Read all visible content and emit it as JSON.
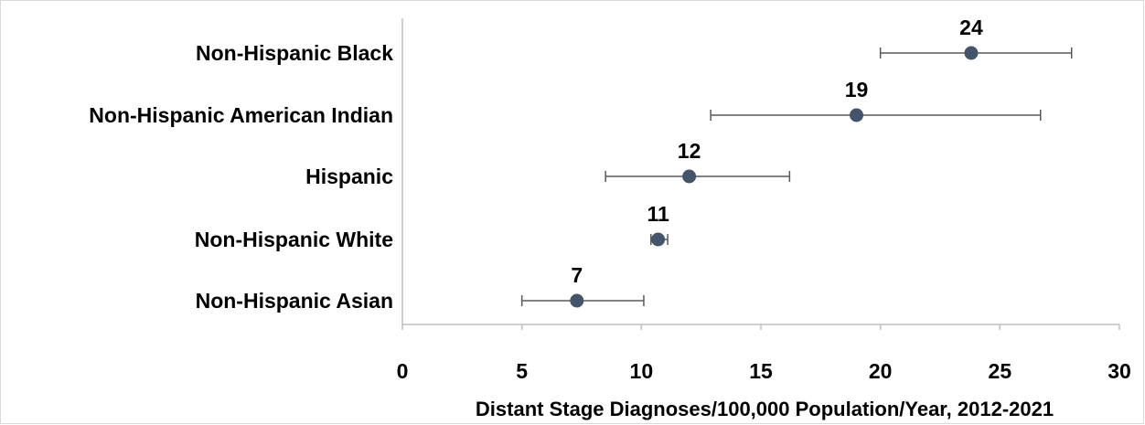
{
  "chart_data": {
    "type": "scatter",
    "orientation": "horizontal",
    "title": "",
    "xlabel": "Distant Stage Diagnoses/100,000 Population/Year, 2012-2021",
    "ylabel": "",
    "xlim": [
      0,
      30
    ],
    "x_ticks": [
      0,
      5,
      10,
      15,
      20,
      25,
      30
    ],
    "grid": false,
    "legend": "none",
    "marker_color": "#44546a",
    "error_bar_color": "#595959",
    "categories": [
      "Non-Hispanic Black",
      "Non-Hispanic American Indian",
      "Hispanic",
      "Non-Hispanic White",
      "Non-Hispanic Asian"
    ],
    "values": [
      23.8,
      19.0,
      12.0,
      10.7,
      7.3
    ],
    "error_low": [
      20.0,
      12.9,
      8.5,
      10.4,
      5.0
    ],
    "error_high": [
      28.0,
      26.7,
      16.2,
      11.1,
      10.1
    ],
    "data_labels": [
      "24",
      "19",
      "12",
      "11",
      "7"
    ]
  }
}
